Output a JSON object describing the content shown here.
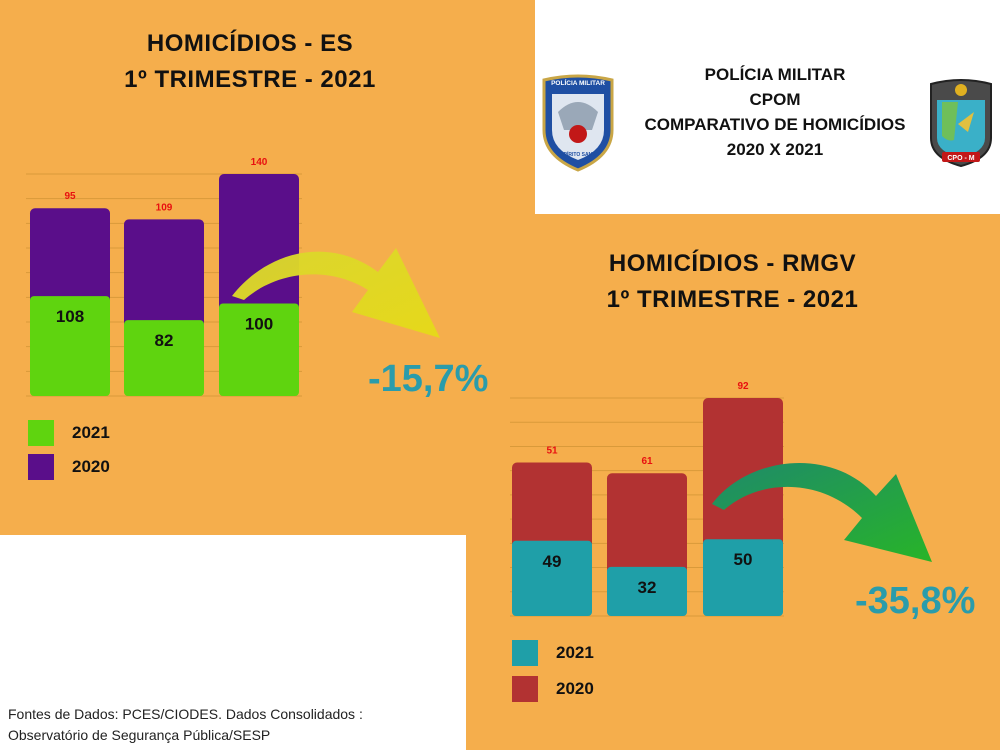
{
  "header": {
    "lines": [
      "POLÍCIA MILITAR",
      "CPOM",
      "COMPARATIVO DE HOMICÍDIOS",
      "2020 X 2021"
    ],
    "left_logo_text": "POLÍCIA MILITAR",
    "left_logo_subtext": "ESPÍRITO SANTO",
    "right_logo_text": "CPO - M"
  },
  "source": {
    "line1": "Fontes de Dados: PCES/CIODES. Dados Consolidados :",
    "line2": "Observatório de Segurança Pública/SESP"
  },
  "colors": {
    "background": "#f5ae4c",
    "es_2021": "#5fd40f",
    "es_2020": "#5a0e8a",
    "rmgv_2021": "#1f9fa8",
    "rmgv_2020": "#b23232",
    "pct_text": "#2a9cab",
    "top_label": "#e81010"
  },
  "chart_data": [
    {
      "type": "bar",
      "title_lines": [
        "HOMICÍDIOS - ES",
        "1º TRIMESTRE - 2021"
      ],
      "categories": [
        "",
        "",
        ""
      ],
      "series": [
        {
          "name": "2021",
          "values": [
            108,
            82,
            100
          ]
        },
        {
          "name": "2020",
          "values": [
            95,
            109,
            140
          ]
        }
      ],
      "change_label": "-15,7%",
      "legend": [
        "2021",
        "2020"
      ],
      "legend_position": "bottom-left",
      "grid": true
    },
    {
      "type": "bar",
      "title_lines": [
        "HOMICÍDIOS - RMGV",
        "1º TRIMESTRE - 2021"
      ],
      "categories": [
        "",
        "",
        ""
      ],
      "series": [
        {
          "name": "2021",
          "values": [
            49,
            32,
            50
          ]
        },
        {
          "name": "2020",
          "values": [
            51,
            61,
            92
          ]
        }
      ],
      "change_label": "-35,8%",
      "legend": [
        "2021",
        "2020"
      ],
      "legend_position": "bottom-left",
      "grid": true
    }
  ]
}
